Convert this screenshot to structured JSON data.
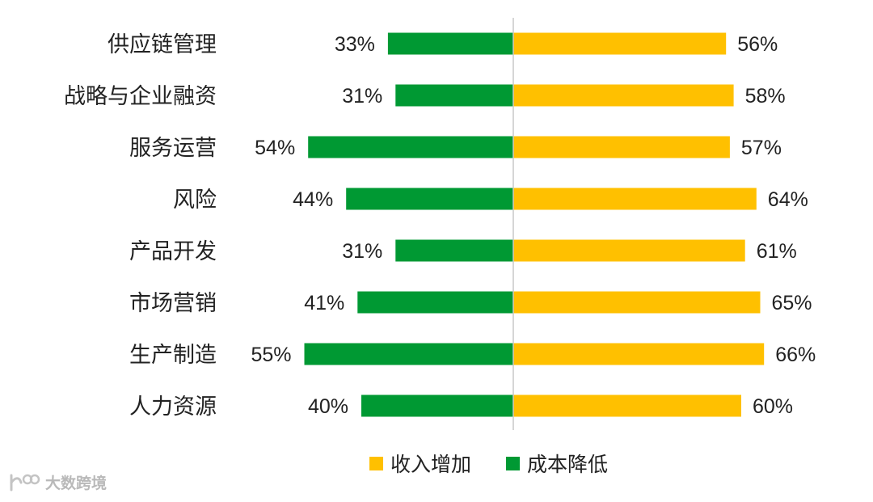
{
  "chart_data": {
    "type": "bar",
    "orientation": "horizontal-diverging",
    "categories": [
      "供应链管理",
      "战略与企业融资",
      "服务运营",
      "风险",
      "产品开发",
      "市场营销",
      "生产制造",
      "人力资源"
    ],
    "series": [
      {
        "name": "收入增加",
        "color": "#FFC000",
        "direction": "right",
        "values": [
          56,
          58,
          57,
          64,
          61,
          65,
          66,
          60
        ],
        "labels": [
          "56%",
          "58%",
          "57%",
          "64%",
          "61%",
          "65%",
          "66%",
          "60%"
        ]
      },
      {
        "name": "成本降低",
        "color": "#009933",
        "direction": "left",
        "values": [
          33,
          31,
          54,
          44,
          31,
          41,
          55,
          40
        ],
        "labels": [
          "33%",
          "31%",
          "54%",
          "44%",
          "31%",
          "41%",
          "55%",
          "40%"
        ]
      }
    ],
    "unit": "%",
    "legend": "bottom-center",
    "grid": false
  },
  "watermark": {
    "text": "大数跨境",
    "icon": "brand-logo-icon"
  }
}
